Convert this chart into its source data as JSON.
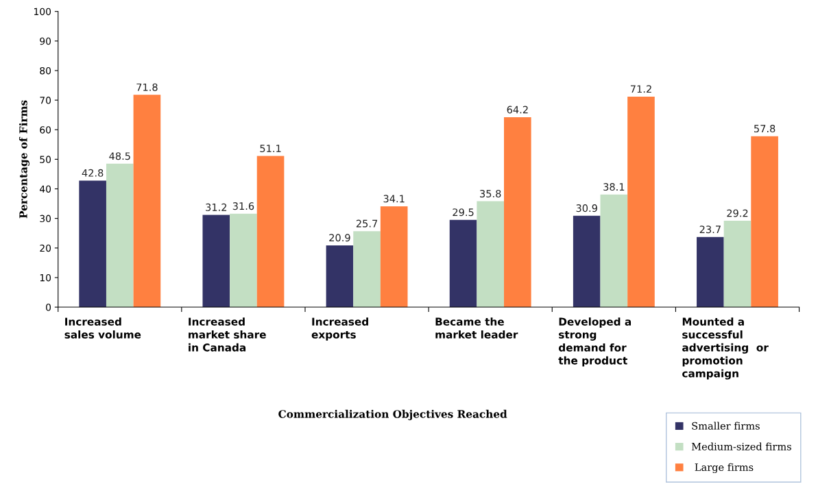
{
  "chart_data": {
    "type": "bar",
    "xlabel": "Commercialization Objectives Reached",
    "ylabel": "Percentage of Firms",
    "categories": [
      "Increased\nsales volume",
      "Increased\nmarket share\nin Canada",
      "Increased\nexports",
      "Became the\nmarket leader",
      "Developed a\nstrong\ndemand for\nthe product",
      "Mounted a\nsuccessful\nadvertising  or\npromotion\ncampaign"
    ],
    "series": [
      {
        "name": "Smaller firms",
        "color": "#333366",
        "values": [
          42.8,
          31.2,
          20.9,
          29.5,
          30.9,
          23.7
        ]
      },
      {
        "name": "Medium-sized firms",
        "color": "#c3dfc3",
        "values": [
          48.5,
          31.6,
          25.7,
          35.8,
          38.1,
          29.2
        ]
      },
      {
        "name": " Large firms",
        "color": "#ff8040",
        "values": [
          71.8,
          51.1,
          34.1,
          64.2,
          71.2,
          57.8
        ]
      }
    ],
    "ylim": [
      0,
      100
    ],
    "yticks": [
      0,
      10,
      20,
      30,
      40,
      50,
      60,
      70,
      80,
      90,
      100
    ],
    "data_labels": true,
    "grid": false,
    "legend": "bottom right"
  }
}
